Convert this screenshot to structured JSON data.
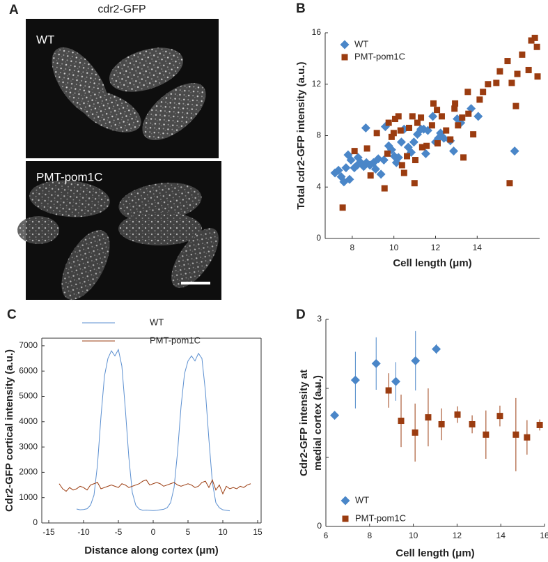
{
  "figure": {
    "panel_labels": [
      "A",
      "B",
      "C",
      "D"
    ],
    "image_title": "cdr2-GFP",
    "image_labels": [
      "WT",
      "PMT-pom1C"
    ]
  },
  "chart_data": [
    {
      "type": "scatter",
      "xlabel": "Cell length (μm)",
      "ylabel": [
        "Total cdr2-GFP intensity (a.u.)"
      ],
      "xlim": [
        6.7,
        17
      ],
      "xticks": [
        8,
        10,
        12,
        14
      ],
      "ylim": [
        0,
        16
      ],
      "yticks": [
        0,
        4,
        8,
        12,
        16
      ],
      "legend": "upper left",
      "series": [
        {
          "name": "WT",
          "color": "#4a86c8",
          "marker": "diamond",
          "x": [
            7.17,
            7.34,
            7.47,
            7.6,
            7.7,
            7.8,
            7.94,
            7.87,
            8.1,
            8.24,
            8.28,
            8.41,
            8.55,
            8.68,
            8.85,
            9.02,
            9.12,
            9.25,
            9.38,
            9.52,
            8.65,
            9.59,
            9.75,
            9.89,
            10.02,
            10.12,
            10.22,
            10.36,
            10.49,
            10.69,
            10.83,
            10.96,
            11.13,
            11.3,
            11.43,
            11.53,
            11.63,
            11.87,
            12.0,
            12.14,
            12.24,
            12.4,
            12.71,
            12.87,
            13.04,
            13.21,
            13.71,
            14.05,
            15.8
          ],
          "values": [
            5.1,
            5.3,
            4.8,
            4.4,
            5.5,
            6.5,
            6.1,
            4.6,
            5.5,
            5.7,
            6.3,
            5.9,
            5.6,
            5.9,
            5.7,
            5.9,
            5.4,
            6.2,
            5.0,
            6.1,
            8.6,
            8.7,
            7.2,
            6.9,
            6.4,
            5.9,
            6.3,
            7.5,
            8.5,
            7.1,
            6.7,
            7.5,
            8.1,
            8.5,
            8.5,
            6.6,
            8.4,
            9.5,
            7.5,
            7.8,
            8.2,
            7.8,
            7.6,
            6.8,
            9.3,
            9.0,
            10.1,
            9.5,
            6.8
          ]
        },
        {
          "name": "PMT-pom1C",
          "color": "#9b3c10",
          "marker": "square",
          "x": [
            7.54,
            8.11,
            8.71,
            8.88,
            9.18,
            9.55,
            9.69,
            9.75,
            9.89,
            9.99,
            10.06,
            10.22,
            10.32,
            10.39,
            10.49,
            10.63,
            10.73,
            10.89,
            10.99,
            11.03,
            11.13,
            11.3,
            11.36,
            11.57,
            11.83,
            11.9,
            12.07,
            12.1,
            12.3,
            12.51,
            12.71,
            12.91,
            12.94,
            13.08,
            13.28,
            13.34,
            13.55,
            13.58,
            13.81,
            14.12,
            14.28,
            14.52,
            14.92,
            15.09,
            15.46,
            15.66,
            15.93,
            16.16,
            16.47,
            16.6,
            16.77,
            16.87,
            16.9,
            15.86,
            15.56
          ],
          "values": [
            2.4,
            6.8,
            7.0,
            4.9,
            8.2,
            3.9,
            6.6,
            9.0,
            7.9,
            8.2,
            9.3,
            9.5,
            8.4,
            5.7,
            5.1,
            6.4,
            8.6,
            9.5,
            4.3,
            6.1,
            9.0,
            9.4,
            7.1,
            7.2,
            8.8,
            10.5,
            10.0,
            7.4,
            9.5,
            8.4,
            7.7,
            10.1,
            10.5,
            8.8,
            9.4,
            6.3,
            11.4,
            9.7,
            8.1,
            10.8,
            11.4,
            12.0,
            12.1,
            13.0,
            13.8,
            12.1,
            12.8,
            14.3,
            13.1,
            15.4,
            15.6,
            14.9,
            12.6,
            10.3,
            4.3
          ]
        }
      ]
    },
    {
      "type": "line",
      "xlabel": "Distance along cortex (μm)",
      "ylabel": [
        "Cdr2-GFP cortical intensity (a.u.)"
      ],
      "xlim": [
        -16,
        15.5
      ],
      "xticks": [
        -15,
        -10,
        -5,
        0,
        5,
        10,
        15
      ],
      "ylim": [
        0,
        7300
      ],
      "yticks": [
        0,
        1000,
        2000,
        3000,
        4000,
        5000,
        6000,
        7000
      ],
      "legend": "upper left",
      "x": [
        -13.5,
        -13,
        -12.5,
        -12,
        -11.5,
        -11,
        -10.5,
        -10,
        -9.5,
        -9,
        -8.5,
        -8,
        -7.5,
        -7,
        -6.5,
        -6,
        -5.5,
        -5,
        -4.5,
        -4,
        -3.5,
        -3,
        -2.5,
        -2,
        -1.5,
        -1,
        -0.5,
        0,
        0.5,
        1,
        1.5,
        2,
        2.5,
        3,
        3.5,
        4,
        4.5,
        5,
        5.5,
        6,
        6.5,
        7,
        7.5,
        8,
        8.5,
        9,
        9.5,
        10,
        10.5,
        11,
        11.5,
        12,
        12.5,
        13,
        13.5,
        14
      ],
      "series": [
        {
          "name": "WT",
          "color": "#5b8fd0",
          "values": [
            null,
            null,
            null,
            null,
            null,
            550,
            520,
            530,
            560,
            700,
            1100,
            2300,
            4200,
            5800,
            6500,
            6800,
            6600,
            6850,
            6200,
            4500,
            2600,
            1200,
            700,
            550,
            500,
            510,
            500,
            490,
            500,
            520,
            540,
            600,
            800,
            1400,
            2800,
            4600,
            5900,
            6400,
            6600,
            6400,
            6700,
            6500,
            5200,
            3300,
            1600,
            800,
            600,
            520,
            500,
            480,
            null,
            null,
            null,
            null,
            null,
            null
          ]
        },
        {
          "name": "PMT-pom1C",
          "color": "#9b3c10",
          "values": [
            1550,
            1350,
            1250,
            1400,
            1300,
            1350,
            1450,
            1400,
            1300,
            1500,
            1550,
            1600,
            1350,
            1400,
            1450,
            1500,
            1450,
            1400,
            1550,
            1500,
            1400,
            1450,
            1500,
            1550,
            1650,
            1700,
            1500,
            1550,
            1600,
            1550,
            1450,
            1500,
            1550,
            1600,
            1500,
            1450,
            1500,
            1550,
            1500,
            1400,
            1450,
            1600,
            1650,
            1400,
            1700,
            1300,
            1500,
            1150,
            1450,
            1350,
            1400,
            1350,
            1450,
            1400,
            1500,
            1550
          ]
        }
      ]
    },
    {
      "type": "scatter",
      "xlabel": "Cell length (μm)",
      "ylabel": [
        "Cdr2-GFP intensity at",
        "medial cortex (a.u.)"
      ],
      "xlim": [
        6,
        16
      ],
      "xticks": [
        6,
        8,
        10,
        12,
        14,
        16
      ],
      "ylim": [
        0,
        3
      ],
      "yticks": [
        0,
        1,
        2,
        3
      ],
      "legend": "lower left",
      "series": [
        {
          "name": "WT",
          "color": "#4a86c8",
          "marker": "diamond",
          "x": [
            6.4,
            7.35,
            8.3,
            9.2,
            10.1,
            11.05
          ],
          "values": [
            1.61,
            2.12,
            2.36,
            2.1,
            2.4,
            2.57
          ],
          "errors": [
            0.03,
            0.41,
            0.38,
            0.28,
            0.43,
            0.07
          ]
        },
        {
          "name": "PMT-pom1C",
          "color": "#9b3c10",
          "marker": "square",
          "x": [
            8.87,
            9.44,
            10.08,
            10.68,
            11.29,
            12.02,
            12.69,
            13.32,
            13.96,
            14.69,
            15.2,
            15.78
          ],
          "values": [
            1.97,
            1.53,
            1.36,
            1.58,
            1.48,
            1.62,
            1.48,
            1.33,
            1.6,
            1.33,
            1.29,
            1.47
          ],
          "errors": [
            0.25,
            0.38,
            0.42,
            0.42,
            0.23,
            0.12,
            0.13,
            0.35,
            0.15,
            0.53,
            0.25,
            0.08
          ]
        }
      ]
    }
  ]
}
